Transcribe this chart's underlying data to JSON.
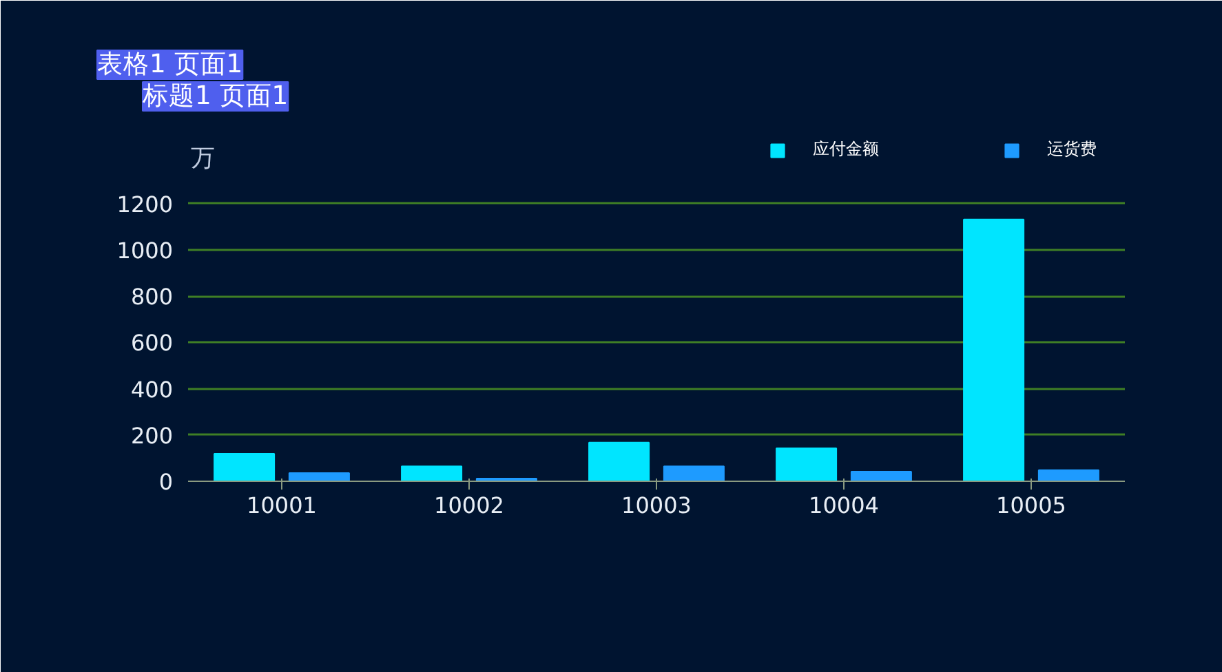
{
  "chart_data": {
    "type": "bar",
    "ylabel": "万",
    "annotations": [
      "表格1 页面1",
      "标题1 页面1"
    ],
    "categories": [
      "10001",
      "10002",
      "10003",
      "10004",
      "10005"
    ],
    "series": [
      {
        "name": "应付金额",
        "color": "#00e5ff",
        "values": [
          119,
          65,
          167,
          143,
          1131
        ]
      },
      {
        "name": "运货费",
        "color": "#1e9bff",
        "values": [
          36,
          12,
          65,
          42,
          48
        ]
      }
    ],
    "ylim": [
      0,
      1600
    ],
    "yticks": [
      0,
      200,
      400,
      600,
      800,
      1000,
      1200
    ],
    "grid": "y",
    "legend": "top right"
  }
}
